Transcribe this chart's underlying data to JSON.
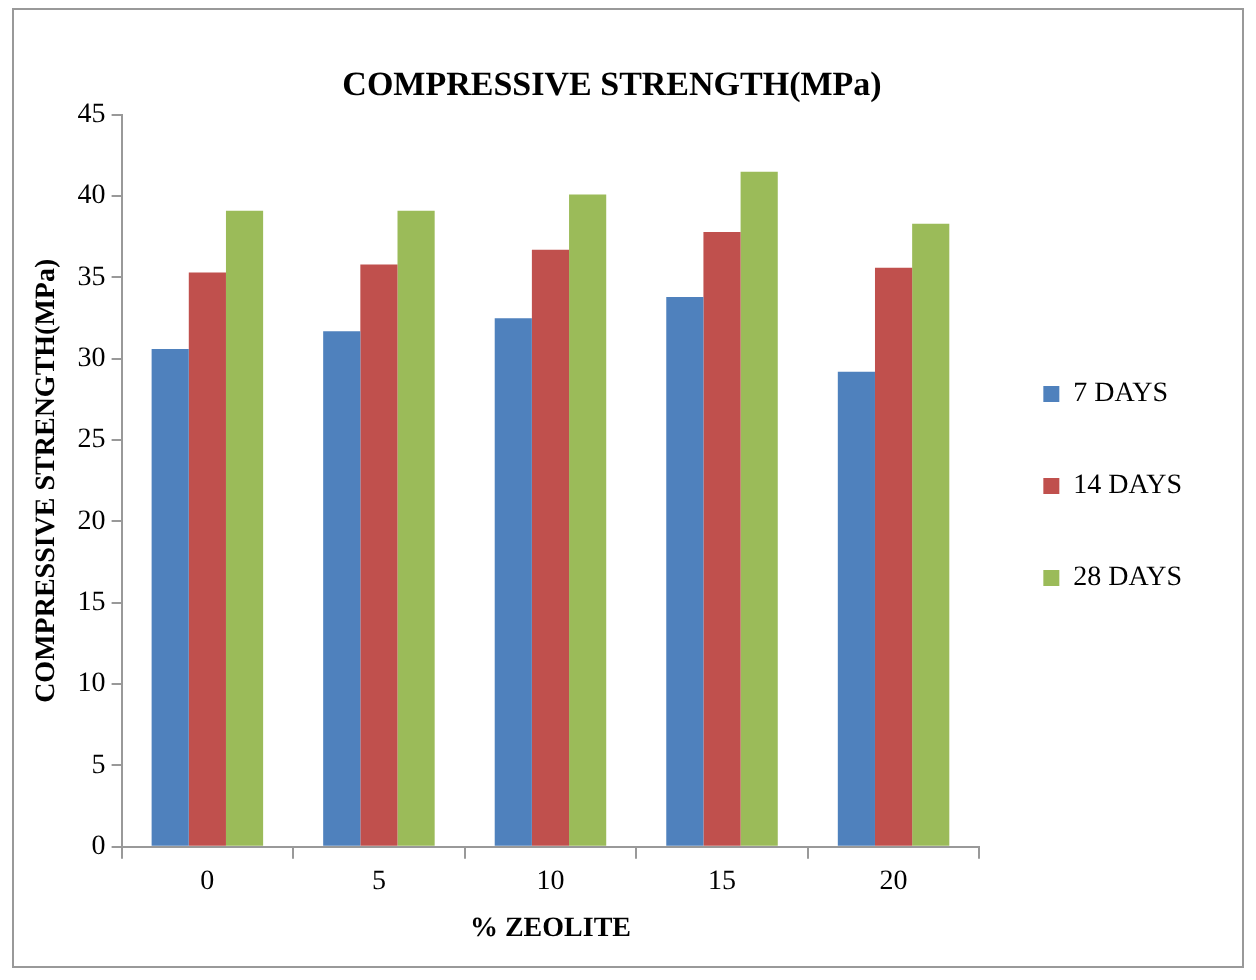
{
  "chart_data": {
    "type": "bar",
    "title": "COMPRESSIVE STRENGTH(MPa)",
    "xlabel": "% ZEOLITE",
    "ylabel": "COMPRESSIVE STRENGTH(MPa)",
    "categories": [
      "0",
      "5",
      "10",
      "15",
      "20"
    ],
    "series": [
      {
        "name": "7 DAYS",
        "color": "#4f81bd",
        "values": [
          30.6,
          31.7,
          32.5,
          33.8,
          29.2
        ]
      },
      {
        "name": "14 DAYS",
        "color": "#c0504d",
        "values": [
          35.3,
          35.8,
          36.7,
          37.8,
          35.6
        ]
      },
      {
        "name": "28 DAYS",
        "color": "#9bbb59",
        "values": [
          39.1,
          39.1,
          40.1,
          41.5,
          38.3
        ]
      }
    ],
    "ylim": [
      0,
      45
    ],
    "yticks": [
      0,
      5,
      10,
      15,
      20,
      25,
      30,
      35,
      40,
      45
    ],
    "grid": false,
    "legend": "right"
  }
}
